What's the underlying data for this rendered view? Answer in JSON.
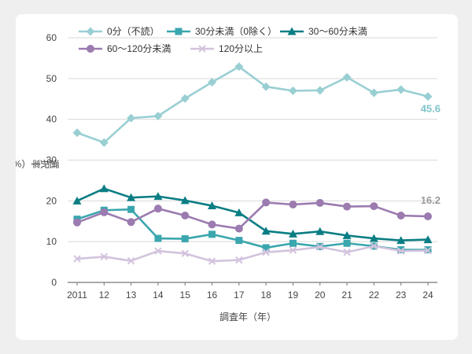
{
  "chart_data": {
    "type": "line",
    "title": "",
    "xlabel": "調査年（年）",
    "ylabel": "選択率（%）",
    "ylim": [
      0,
      60
    ],
    "yticks": [
      "0",
      "10",
      "20",
      "30",
      "40",
      "50",
      "60"
    ],
    "categories": [
      "2011",
      "12",
      "13",
      "14",
      "15",
      "16",
      "17",
      "18",
      "19",
      "20",
      "21",
      "22",
      "23",
      "24"
    ],
    "grid": true,
    "legend_position": "top",
    "series": [
      {
        "name": "0分（不読）",
        "color": "#99cfd3",
        "marker": "diamond",
        "values": [
          36.7,
          34.3,
          40.3,
          40.8,
          45.1,
          49.1,
          52.9,
          48.0,
          47.0,
          47.1,
          50.3,
          46.5,
          47.3,
          45.6
        ]
      },
      {
        "name": "30分未満（0除く）",
        "color": "#3aa6ae",
        "marker": "square",
        "values": [
          15.5,
          17.7,
          17.9,
          10.8,
          10.7,
          11.8,
          10.3,
          8.5,
          9.6,
          8.8,
          9.6,
          8.9,
          8.0,
          8.0
        ]
      },
      {
        "name": "30～60分未満",
        "color": "#0b7e84",
        "marker": "triangle",
        "values": [
          20.0,
          23.0,
          20.8,
          21.1,
          20.1,
          18.8,
          17.1,
          12.6,
          11.9,
          12.5,
          11.5,
          10.8,
          10.3,
          10.5
        ]
      },
      {
        "name": "60～120分未満",
        "color": "#9b7bb0",
        "marker": "circle",
        "values": [
          14.7,
          17.2,
          14.8,
          18.1,
          16.4,
          14.2,
          13.2,
          19.6,
          19.1,
          19.5,
          18.6,
          18.7,
          16.4,
          16.2
        ]
      },
      {
        "name": "120分以上",
        "color": "#d3c3dd",
        "marker": "x",
        "values": [
          5.8,
          6.3,
          5.3,
          7.7,
          7.1,
          5.2,
          5.5,
          7.4,
          7.9,
          8.7,
          7.4,
          8.9,
          7.7,
          7.8
        ]
      }
    ],
    "annotations": [
      {
        "text": "45.6",
        "color": "#7fc3c9"
      },
      {
        "text": "16.2",
        "color": "#9a9a9a"
      }
    ]
  }
}
